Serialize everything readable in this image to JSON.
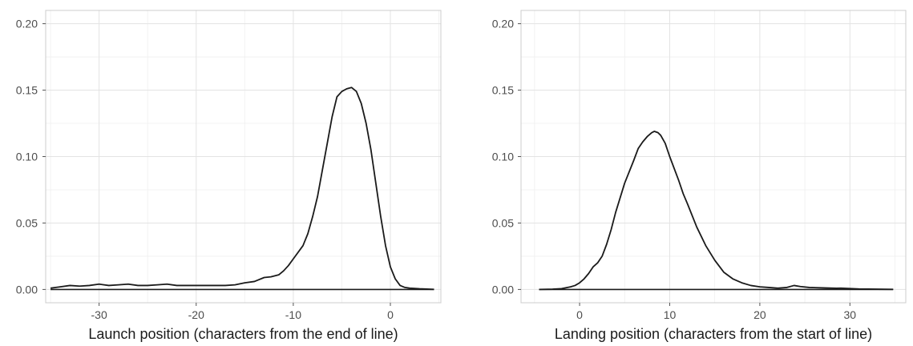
{
  "chart_data": [
    {
      "type": "line",
      "title": "",
      "xlabel": "Launch position (characters from the end of line)",
      "ylabel": "",
      "xlim": [
        -35.5,
        5.2
      ],
      "ylim": [
        -0.01,
        0.21
      ],
      "x_ticks": [
        -30,
        -20,
        -10,
        0
      ],
      "x_tick_labels": [
        "-30",
        "-20",
        "-10",
        "0"
      ],
      "y_ticks": [
        0,
        0.05,
        0.1,
        0.15,
        0.2
      ],
      "y_tick_labels": [
        "0.00",
        "0.05",
        "0.10",
        "0.15",
        "0.20"
      ],
      "grid": true,
      "baseline": [
        [
          -35,
          0
        ],
        [
          4.5,
          0
        ]
      ],
      "series": [
        {
          "color": "#1a1a1a",
          "points": [
            [
              -35,
              0.001
            ],
            [
              -34,
              0.002
            ],
            [
              -33,
              0.003
            ],
            [
              -32,
              0.0025
            ],
            [
              -31,
              0.003
            ],
            [
              -30,
              0.004
            ],
            [
              -29,
              0.003
            ],
            [
              -28,
              0.0035
            ],
            [
              -27,
              0.004
            ],
            [
              -26,
              0.003
            ],
            [
              -25,
              0.003
            ],
            [
              -24,
              0.0035
            ],
            [
              -23,
              0.004
            ],
            [
              -22,
              0.003
            ],
            [
              -21,
              0.003
            ],
            [
              -20,
              0.003
            ],
            [
              -19,
              0.003
            ],
            [
              -18,
              0.003
            ],
            [
              -17,
              0.003
            ],
            [
              -16,
              0.0035
            ],
            [
              -15,
              0.005
            ],
            [
              -14,
              0.006
            ],
            [
              -13,
              0.009
            ],
            [
              -12.3,
              0.0095
            ],
            [
              -11.5,
              0.011
            ],
            [
              -11,
              0.014
            ],
            [
              -10.5,
              0.018
            ],
            [
              -10,
              0.023
            ],
            [
              -9,
              0.033
            ],
            [
              -8.5,
              0.042
            ],
            [
              -8,
              0.055
            ],
            [
              -7.5,
              0.07
            ],
            [
              -7,
              0.09
            ],
            [
              -6.5,
              0.11
            ],
            [
              -6,
              0.13
            ],
            [
              -5.5,
              0.145
            ],
            [
              -5,
              0.149
            ],
            [
              -4.5,
              0.151
            ],
            [
              -4,
              0.152
            ],
            [
              -3.5,
              0.149
            ],
            [
              -3,
              0.14
            ],
            [
              -2.5,
              0.125
            ],
            [
              -2,
              0.105
            ],
            [
              -1.5,
              0.08
            ],
            [
              -1,
              0.055
            ],
            [
              -0.5,
              0.033
            ],
            [
              0,
              0.017
            ],
            [
              0.5,
              0.008
            ],
            [
              1,
              0.003
            ],
            [
              1.5,
              0.0015
            ],
            [
              2,
              0.001
            ],
            [
              3,
              0.0005
            ],
            [
              4,
              0.0002
            ],
            [
              4.5,
              0.0001
            ]
          ]
        }
      ]
    },
    {
      "type": "line",
      "title": "",
      "xlabel": "Landing position (characters from the start of line)",
      "ylabel": "",
      "xlim": [
        -6.5,
        36.2
      ],
      "ylim": [
        -0.01,
        0.21
      ],
      "x_ticks": [
        0,
        10,
        20,
        30
      ],
      "x_tick_labels": [
        "0",
        "10",
        "20",
        "30"
      ],
      "y_ticks": [
        0,
        0.05,
        0.1,
        0.15,
        0.2
      ],
      "y_tick_labels": [
        "0.00",
        "0.05",
        "0.10",
        "0.15",
        "0.20"
      ],
      "grid": true,
      "baseline": [
        [
          -4.5,
          0
        ],
        [
          34.8,
          0
        ]
      ],
      "series": [
        {
          "color": "#1a1a1a",
          "points": [
            [
              -4.5,
              0
            ],
            [
              -3,
              0.0002
            ],
            [
              -2,
              0.0006
            ],
            [
              -1,
              0.002
            ],
            [
              -0.5,
              0.003
            ],
            [
              0,
              0.005
            ],
            [
              0.5,
              0.008
            ],
            [
              1,
              0.012
            ],
            [
              1.5,
              0.017
            ],
            [
              2,
              0.02
            ],
            [
              2.5,
              0.025
            ],
            [
              3,
              0.034
            ],
            [
              3.5,
              0.045
            ],
            [
              4,
              0.058
            ],
            [
              5,
              0.08
            ],
            [
              6,
              0.097
            ],
            [
              6.5,
              0.106
            ],
            [
              7,
              0.111
            ],
            [
              7.5,
              0.115
            ],
            [
              8,
              0.118
            ],
            [
              8.3,
              0.119
            ],
            [
              8.7,
              0.118
            ],
            [
              9,
              0.116
            ],
            [
              9.5,
              0.11
            ],
            [
              10,
              0.1
            ],
            [
              11,
              0.082
            ],
            [
              11.5,
              0.072
            ],
            [
              12,
              0.064
            ],
            [
              13,
              0.047
            ],
            [
              14,
              0.033
            ],
            [
              15,
              0.022
            ],
            [
              16,
              0.013
            ],
            [
              17,
              0.008
            ],
            [
              18,
              0.005
            ],
            [
              19,
              0.003
            ],
            [
              20,
              0.002
            ],
            [
              21,
              0.0015
            ],
            [
              22,
              0.001
            ],
            [
              23,
              0.0015
            ],
            [
              23.8,
              0.003
            ],
            [
              24.5,
              0.0022
            ],
            [
              25.5,
              0.0015
            ],
            [
              27,
              0.0012
            ],
            [
              28.5,
              0.0009
            ],
            [
              29,
              0.001
            ],
            [
              30,
              0.0007
            ],
            [
              31,
              0.0004
            ],
            [
              33,
              0.0002
            ],
            [
              34.8,
              0.0001
            ]
          ]
        }
      ]
    }
  ]
}
